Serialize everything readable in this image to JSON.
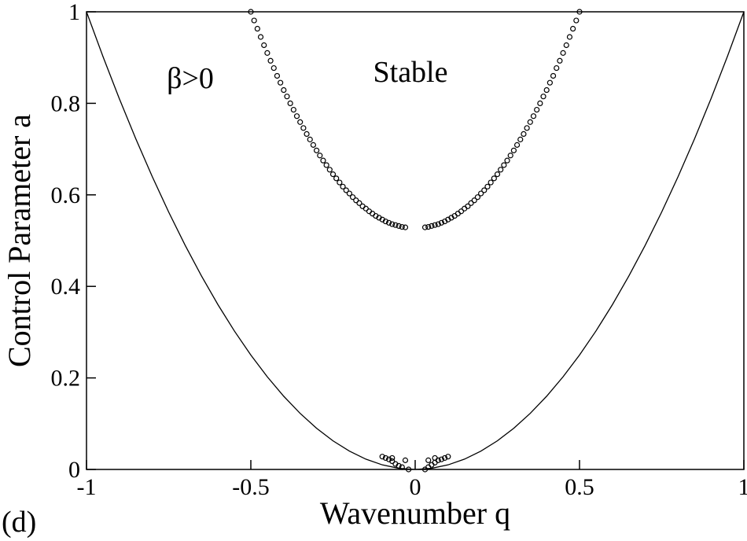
{
  "chart_data": {
    "type": "scatter",
    "xlabel": "Wavenumber q",
    "ylabel": "Control Parameter a",
    "annotations": [
      "β>0",
      "Stable",
      "(d)"
    ],
    "xlim": [
      -1,
      1
    ],
    "ylim": [
      0,
      1
    ],
    "xticks": [
      -1,
      -0.5,
      0,
      0.5,
      1
    ],
    "yticks": [
      0,
      0.2,
      0.4,
      0.6,
      0.8,
      1
    ],
    "series": [
      {
        "mode": "line",
        "color": "#000000",
        "x": [
          -1,
          -0.95,
          -0.9,
          -0.85,
          -0.8,
          -0.75,
          -0.7,
          -0.65,
          -0.6,
          -0.55,
          -0.5,
          -0.45,
          -0.4,
          -0.35,
          -0.3,
          -0.25,
          -0.2,
          -0.15,
          -0.1,
          -0.05,
          0,
          0.05,
          0.1,
          0.15,
          0.2,
          0.25,
          0.3,
          0.35,
          0.4,
          0.45,
          0.5,
          0.55,
          0.6,
          0.65,
          0.7,
          0.75,
          0.8,
          0.85,
          0.9,
          0.95,
          1
        ],
        "values": [
          1,
          0.9025,
          0.81,
          0.7225,
          0.64,
          0.5625,
          0.49,
          0.4225,
          0.36,
          0.3025,
          0.25,
          0.2025,
          0.16,
          0.1225,
          0.09,
          0.0625,
          0.04,
          0.0225,
          0.01,
          0.0025,
          0,
          0.0025,
          0.01,
          0.0225,
          0.04,
          0.0625,
          0.09,
          0.1225,
          0.16,
          0.2025,
          0.25,
          0.3025,
          0.36,
          0.4225,
          0.49,
          0.5625,
          0.64,
          0.7225,
          0.81,
          0.9025,
          1
        ]
      },
      {
        "mode": "markers",
        "color": "#000000",
        "x": [
          0.03,
          0.04,
          0.05,
          0.06,
          0.07,
          0.08,
          0.09,
          0.1,
          0.11,
          0.12,
          0.13,
          0.14,
          0.15,
          0.16,
          0.17,
          0.18,
          0.19,
          0.2,
          0.21,
          0.22,
          0.23,
          0.24,
          0.25,
          0.26,
          0.27,
          0.28,
          0.29,
          0.3,
          0.31,
          0.32,
          0.33,
          0.34,
          0.35,
          0.36,
          0.37,
          0.38,
          0.39,
          0.4,
          0.41,
          0.42,
          0.43,
          0.44,
          0.45,
          0.46,
          0.47,
          0.48,
          0.49,
          0.5
        ],
        "values": [
          0.529,
          0.53,
          0.532,
          0.534,
          0.536,
          0.539,
          0.542,
          0.546,
          0.55,
          0.554,
          0.559,
          0.564,
          0.57,
          0.575,
          0.582,
          0.588,
          0.595,
          0.603,
          0.61,
          0.618,
          0.627,
          0.636,
          0.645,
          0.655,
          0.665,
          0.675,
          0.686,
          0.697,
          0.709,
          0.721,
          0.733,
          0.746,
          0.759,
          0.772,
          0.786,
          0.8,
          0.815,
          0.829,
          0.845,
          0.86,
          0.877,
          0.893,
          0.91,
          0.927,
          0.945,
          0.963,
          0.981,
          1
        ]
      },
      {
        "mode": "markers",
        "color": "#000000",
        "x": [
          -0.03,
          -0.04,
          -0.05,
          -0.06,
          -0.07,
          -0.08,
          -0.09,
          -0.1,
          -0.11,
          -0.12,
          -0.13,
          -0.14,
          -0.15,
          -0.16,
          -0.17,
          -0.18,
          -0.19,
          -0.2,
          -0.21,
          -0.22,
          -0.23,
          -0.24,
          -0.25,
          -0.26,
          -0.27,
          -0.28,
          -0.29,
          -0.3,
          -0.31,
          -0.32,
          -0.33,
          -0.34,
          -0.35,
          -0.36,
          -0.37,
          -0.38,
          -0.39,
          -0.4,
          -0.41,
          -0.42,
          -0.43,
          -0.44,
          -0.45,
          -0.46,
          -0.47,
          -0.48,
          -0.49,
          -0.5
        ],
        "values": [
          0.529,
          0.53,
          0.532,
          0.534,
          0.536,
          0.539,
          0.542,
          0.546,
          0.55,
          0.554,
          0.559,
          0.564,
          0.57,
          0.575,
          0.582,
          0.588,
          0.595,
          0.603,
          0.61,
          0.618,
          0.627,
          0.636,
          0.645,
          0.655,
          0.665,
          0.675,
          0.686,
          0.697,
          0.709,
          0.721,
          0.733,
          0.746,
          0.759,
          0.772,
          0.786,
          0.8,
          0.815,
          0.829,
          0.845,
          0.86,
          0.877,
          0.893,
          0.91,
          0.927,
          0.945,
          0.963,
          0.981,
          1
        ]
      },
      {
        "mode": "markers",
        "color": "#000000",
        "x": [
          -0.1,
          -0.09,
          -0.08,
          -0.07,
          -0.06,
          -0.05,
          -0.04,
          -0.03,
          -0.02,
          -0.07,
          0.03,
          0.04,
          0.05,
          0.06,
          0.07,
          0.08,
          0.09,
          0.1,
          0.04,
          0.06
        ],
        "values": [
          0.028,
          0.025,
          0.022,
          0.018,
          0.012,
          0.008,
          0.005,
          0.02,
          0,
          0.025,
          0,
          0.005,
          0.01,
          0.015,
          0.02,
          0.022,
          0.025,
          0.028,
          0.02,
          0.025
        ]
      }
    ]
  }
}
